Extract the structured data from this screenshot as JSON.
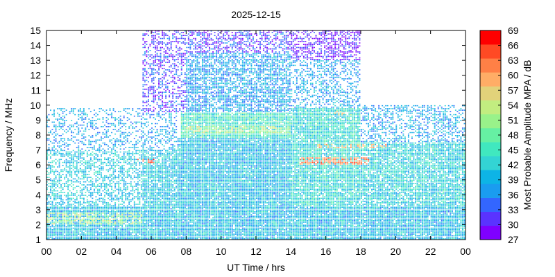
{
  "chart_data": {
    "type": "heatmap",
    "title": "2025-12-15",
    "xlabel": "UT Time / hrs",
    "ylabel": "Frequency / MHz",
    "xlim": [
      0,
      24
    ],
    "ylim": [
      1,
      15
    ],
    "x_ticks": [
      "00",
      "02",
      "04",
      "06",
      "08",
      "10",
      "12",
      "14",
      "16",
      "18",
      "20",
      "22",
      "00"
    ],
    "y_ticks": [
      "1",
      "2",
      "3",
      "4",
      "5",
      "6",
      "7",
      "8",
      "9",
      "10",
      "11",
      "12",
      "13",
      "14",
      "15"
    ],
    "grid": false,
    "colorbar": {
      "label": "Most Probable Amplitude MPA / dB",
      "min": 27,
      "max": 69,
      "ticks": [
        "27",
        "30",
        "33",
        "36",
        "39",
        "42",
        "45",
        "48",
        "51",
        "54",
        "57",
        "60",
        "63",
        "66",
        "69"
      ],
      "colors": [
        "#7f00ff",
        "#5a33ff",
        "#3366ff",
        "#1a9cf0",
        "#0db4e6",
        "#33d4d4",
        "#40e8bf",
        "#66f0a3",
        "#99f28a",
        "#c2ed80",
        "#e2d27a",
        "#ffad66",
        "#ff8046",
        "#ff4a24",
        "#ff0000"
      ]
    },
    "regions": [
      {
        "t0": 0.0,
        "t1": 24.0,
        "f0": 1.0,
        "f1": 3.2,
        "level": 40,
        "density": 0.95
      },
      {
        "t0": 0.0,
        "t1": 5.5,
        "f0": 3.2,
        "f1": 7.0,
        "level": 41,
        "density": 0.55
      },
      {
        "t0": 0.0,
        "t1": 5.5,
        "f0": 7.0,
        "f1": 9.8,
        "level": 38,
        "density": 0.35
      },
      {
        "t0": 5.5,
        "t1": 7.5,
        "f0": 3.0,
        "f1": 7.0,
        "level": 41,
        "density": 0.85
      },
      {
        "t0": 5.5,
        "t1": 7.5,
        "f0": 7.0,
        "f1": 9.5,
        "level": 38,
        "density": 0.4
      },
      {
        "t0": 5.5,
        "t1": 8.0,
        "f0": 9.5,
        "f1": 15.0,
        "level": 32,
        "density": 0.45
      },
      {
        "t0": 7.2,
        "t1": 14.0,
        "f0": 3.0,
        "f1": 7.8,
        "level": 40,
        "density": 0.95
      },
      {
        "t0": 7.7,
        "t1": 14.0,
        "f0": 7.8,
        "f1": 9.5,
        "level": 45,
        "density": 0.95
      },
      {
        "t0": 8.0,
        "t1": 14.0,
        "f0": 9.5,
        "f1": 13.5,
        "level": 38,
        "density": 0.7
      },
      {
        "t0": 8.0,
        "t1": 14.0,
        "f0": 13.5,
        "f1": 15.0,
        "level": 32,
        "density": 0.55
      },
      {
        "t0": 14.0,
        "t1": 18.0,
        "f0": 3.0,
        "f1": 9.8,
        "level": 43,
        "density": 0.9
      },
      {
        "t0": 14.0,
        "t1": 18.0,
        "f0": 9.8,
        "f1": 13.0,
        "level": 38,
        "density": 0.45
      },
      {
        "t0": 14.0,
        "t1": 18.0,
        "f0": 13.0,
        "f1": 15.0,
        "level": 30,
        "density": 0.55
      },
      {
        "t0": 18.0,
        "t1": 24.0,
        "f0": 3.0,
        "f1": 7.5,
        "level": 42,
        "density": 0.85
      },
      {
        "t0": 18.0,
        "t1": 24.0,
        "f0": 7.5,
        "f1": 10.0,
        "level": 38,
        "density": 0.45
      }
    ],
    "hotspots": [
      {
        "t0": 0.0,
        "t1": 5.5,
        "f0": 2.0,
        "f1": 2.8,
        "level": 52
      },
      {
        "t0": 5.2,
        "t1": 6.2,
        "f0": 6.1,
        "f1": 6.4,
        "level": 64
      },
      {
        "t0": 8.0,
        "t1": 14.0,
        "f0": 8.1,
        "f1": 8.6,
        "level": 52
      },
      {
        "t0": 14.5,
        "t1": 18.5,
        "f0": 6.0,
        "f1": 6.5,
        "level": 62
      },
      {
        "t0": 15.5,
        "t1": 19.5,
        "f0": 7.1,
        "f1": 7.4,
        "level": 58
      },
      {
        "t0": 16.5,
        "t1": 17.5,
        "f0": 9.3,
        "f1": 9.6,
        "level": 56
      }
    ]
  }
}
